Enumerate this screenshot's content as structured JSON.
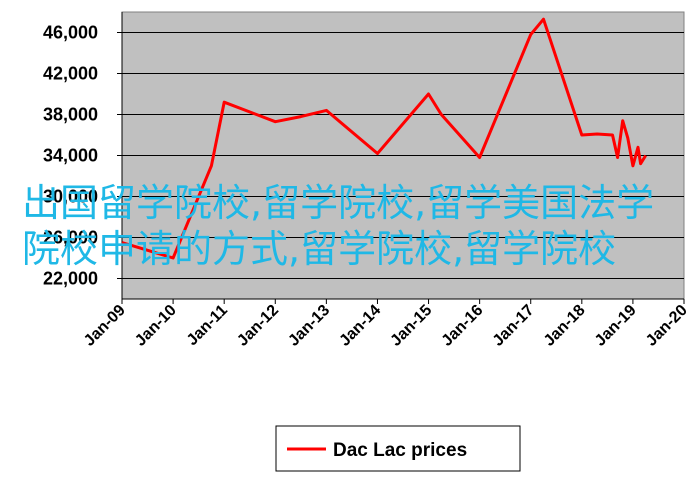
{
  "chart_data": {
    "type": "line",
    "y_ticks": [
      "22,000",
      "26,000",
      "30,000",
      "34,000",
      "38,000",
      "42,000",
      "46,000"
    ],
    "y_tick_values": [
      22000,
      26000,
      30000,
      34000,
      38000,
      42000,
      46000
    ],
    "ylim": [
      20000,
      48000
    ],
    "x_ticks": [
      "Jan-09",
      "Jan-10",
      "Jan-11",
      "Jan-12",
      "Jan-13",
      "Jan-14",
      "Jan-15",
      "Jan-16",
      "Jan-17",
      "Jan-18",
      "Jan-19",
      "Jan-20"
    ],
    "x_tick_values": [
      2009,
      2010,
      2011,
      2012,
      2013,
      2014,
      2015,
      2016,
      2017,
      2018,
      2019,
      2020
    ],
    "xlim": [
      2009,
      2020
    ],
    "grid": "horizontal",
    "legend_position": "bottom",
    "series": [
      {
        "name": "Dac Lac prices",
        "color": "#ff0000",
        "x": [
          2009.0,
          2010.0,
          2010.75,
          2011.0,
          2012.0,
          2012.5,
          2013.0,
          2014.0,
          2015.0,
          2015.25,
          2016.0,
          2017.0,
          2017.25,
          2018.0,
          2018.3,
          2018.6,
          2018.7,
          2018.8,
          2018.9,
          2019.0,
          2019.1,
          2019.15,
          2019.25
        ],
        "y": [
          25500,
          24000,
          33000,
          39200,
          37300,
          37800,
          38400,
          34200,
          40000,
          38000,
          33800,
          45800,
          47300,
          36000,
          36100,
          36000,
          33800,
          37400,
          35700,
          33000,
          34800,
          33200,
          34000
        ]
      }
    ]
  },
  "overlay_text": "出国留学院校,留学院校,留学美国法学院校申请的方式,留学院校,留学院校"
}
